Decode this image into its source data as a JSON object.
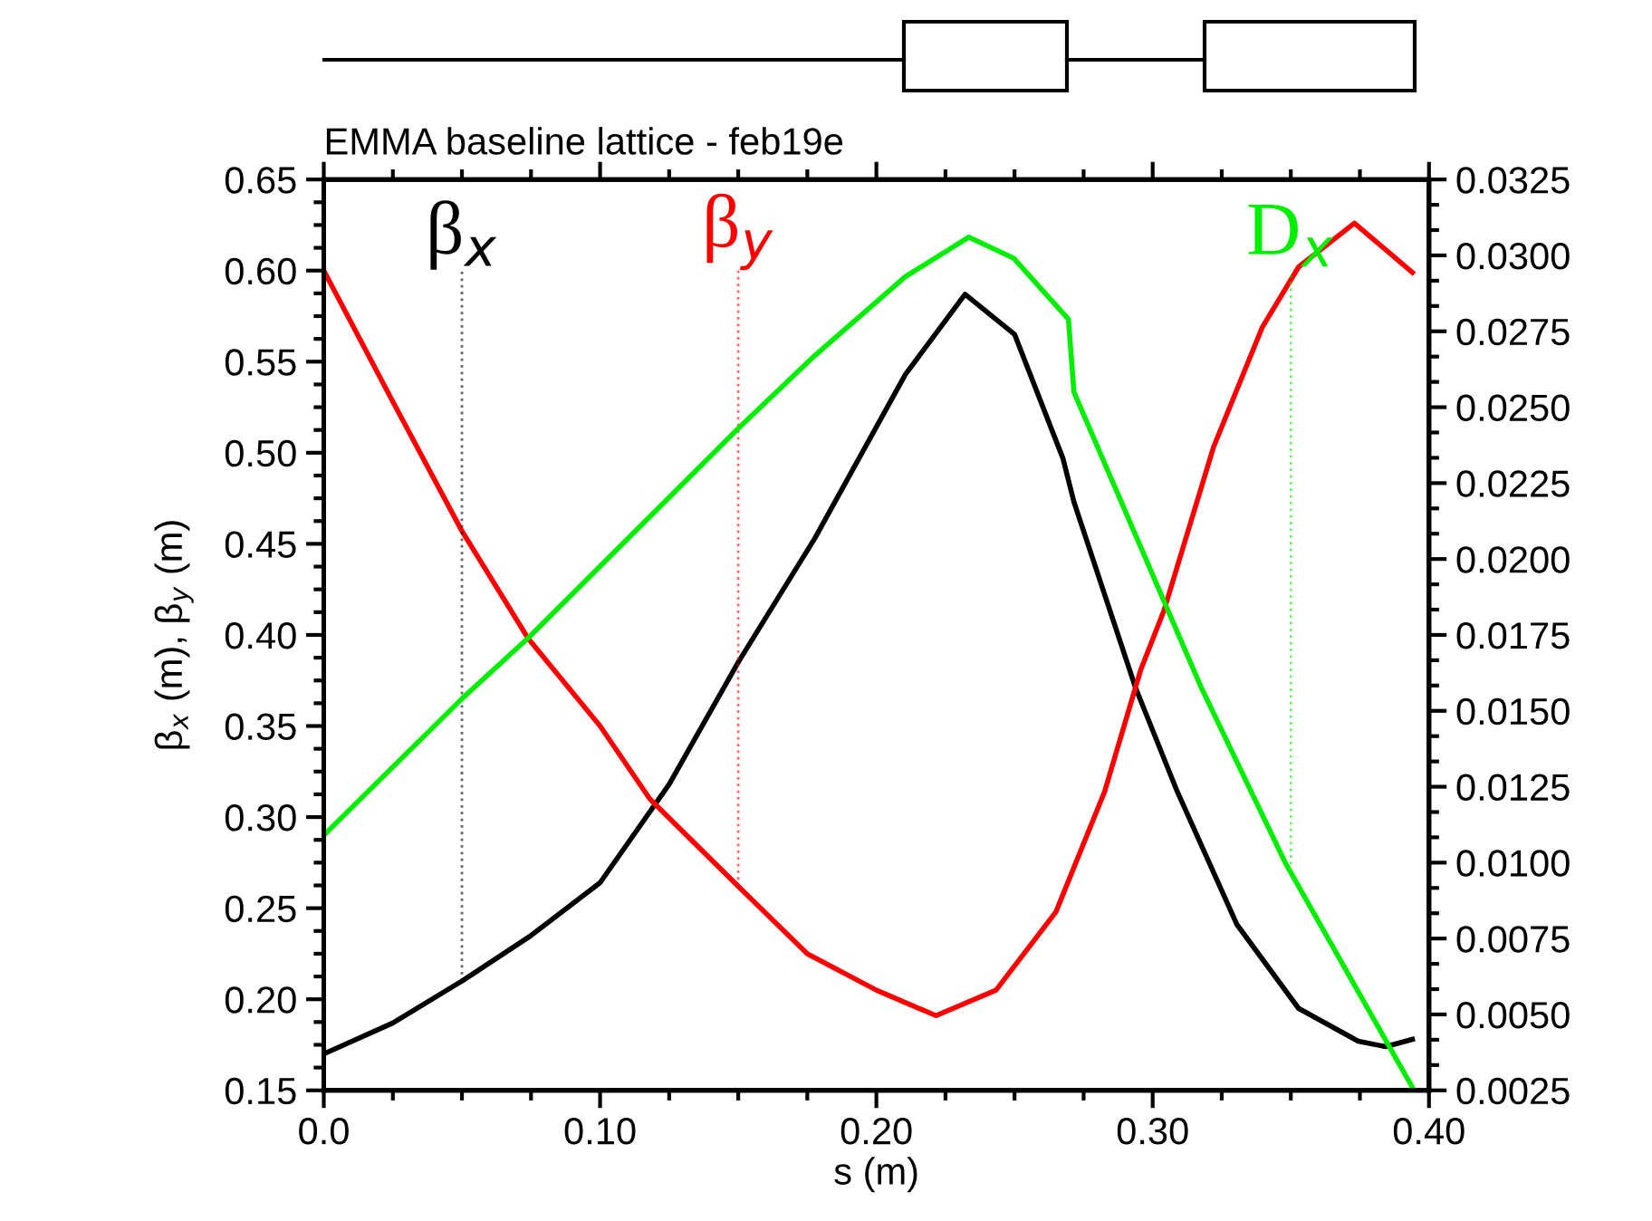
{
  "chart_data": {
    "type": "line",
    "title": "EMMA baseline lattice - feb19e",
    "xlabel": "s (m)",
    "ylabel": "β$_{x}$ (m), β$_{y}$ (m)",
    "xlim": [
      0.0,
      0.4
    ],
    "xticks": [
      {
        "value": 0.0,
        "label": "0.0"
      },
      {
        "value": 0.1,
        "label": "0.10"
      },
      {
        "value": 0.2,
        "label": "0.20"
      },
      {
        "value": 0.3,
        "label": "0.30"
      },
      {
        "value": 0.4,
        "label": "0.40"
      }
    ],
    "ylim": [
      0.15,
      0.65
    ],
    "yticks": [
      {
        "value": 0.15,
        "label": "0.15"
      },
      {
        "value": 0.2,
        "label": "0.20"
      },
      {
        "value": 0.25,
        "label": "0.25"
      },
      {
        "value": 0.3,
        "label": "0.30"
      },
      {
        "value": 0.35,
        "label": "0.35"
      },
      {
        "value": 0.4,
        "label": "0.40"
      },
      {
        "value": 0.45,
        "label": "0.45"
      },
      {
        "value": 0.5,
        "label": "0.50"
      },
      {
        "value": 0.55,
        "label": "0.55"
      },
      {
        "value": 0.6,
        "label": "0.60"
      },
      {
        "value": 0.65,
        "label": "0.65"
      }
    ],
    "y2lim": [
      0.0025,
      0.0325
    ],
    "y2ticks": [
      {
        "value": 0.0025,
        "label": "0.0025"
      },
      {
        "value": 0.005,
        "label": "0.0050"
      },
      {
        "value": 0.0075,
        "label": "0.0075"
      },
      {
        "value": 0.01,
        "label": "0.0100"
      },
      {
        "value": 0.0125,
        "label": "0.0125"
      },
      {
        "value": 0.015,
        "label": "0.0150"
      },
      {
        "value": 0.0175,
        "label": "0.0175"
      },
      {
        "value": 0.02,
        "label": "0.0200"
      },
      {
        "value": 0.0225,
        "label": "0.0225"
      },
      {
        "value": 0.025,
        "label": "0.0250"
      },
      {
        "value": 0.0275,
        "label": "0.0275"
      },
      {
        "value": 0.03,
        "label": "0.0300"
      },
      {
        "value": 0.0325,
        "label": "0.0325"
      }
    ],
    "grid": false,
    "marker": "none",
    "line_style": "solid",
    "series": [
      {
        "color": "#000000",
        "x": [
          0.0,
          0.025,
          0.05,
          0.075,
          0.1,
          0.125,
          0.15,
          0.1777,
          0.2105,
          0.2321,
          0.25,
          0.2675,
          0.2715,
          0.2938,
          0.3089,
          0.3305,
          0.3528,
          0.3744,
          0.3843,
          0.394
        ],
        "values": [
          0.17,
          0.187,
          0.21,
          0.235,
          0.264,
          0.318,
          0.385,
          0.453,
          0.543,
          0.587,
          0.565,
          0.497,
          0.473,
          0.371,
          0.314,
          0.241,
          0.195,
          0.177,
          0.174,
          0.178
        ]
      },
      {
        "color": "#ff0000",
        "x": [
          0.0,
          0.025,
          0.05,
          0.074,
          0.1,
          0.118,
          0.15,
          0.175,
          0.2,
          0.2216,
          0.2433,
          0.265,
          0.2826,
          0.2957,
          0.304,
          0.322,
          0.3397,
          0.3528,
          0.373,
          0.394
        ],
        "values": [
          0.6,
          0.528,
          0.457,
          0.398,
          0.35,
          0.31,
          0.262,
          0.225,
          0.205,
          0.191,
          0.205,
          0.248,
          0.314,
          0.381,
          0.413,
          0.503,
          0.569,
          0.602,
          0.626,
          0.599
        ]
      },
      {
        "color": "#00ee00",
        "axis": "y2",
        "x": [
          0.0,
          0.05,
          0.074,
          0.15,
          0.1777,
          0.2105,
          0.2334,
          0.2498,
          0.2675,
          0.2695,
          0.2715,
          0.3174,
          0.3482,
          0.394
        ],
        "values": [
          0.0109,
          0.0154,
          0.0174,
          0.0243,
          0.0267,
          0.0293,
          0.0306,
          0.0299,
          0.0281,
          0.0279,
          0.0255,
          0.0158,
          0.00996,
          0.0026
        ]
      }
    ],
    "annotations": [
      {
        "text": "β$_{x}$",
        "x": 0.05,
        "y": 0.21
      },
      {
        "text": "β$_{y}$",
        "x": 0.15,
        "y": 0.262
      },
      {
        "text": "D$_{x}$",
        "x": 0.35,
        "y": 0.274
      }
    ]
  }
}
